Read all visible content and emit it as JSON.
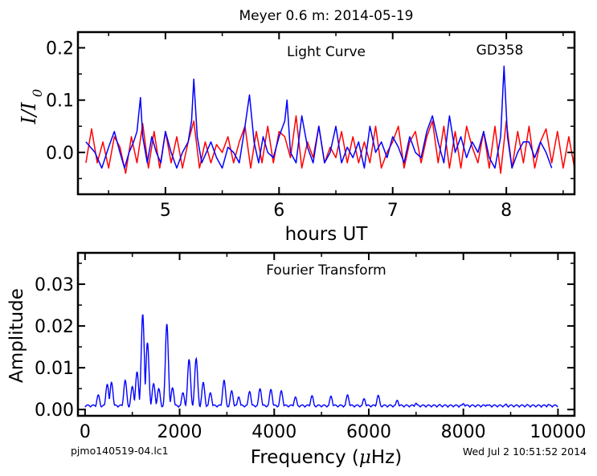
{
  "figure": {
    "suptitle": "Meyer 0.6 m:  2014-05-19",
    "file_label": "pjmo140519-04.lc1",
    "timestamp": "Wed Jul  2 10:51:52 2014"
  },
  "colors": {
    "data": "#0000ff",
    "model": "#ff0000",
    "axes": "#000000",
    "background": "#ffffff"
  },
  "chart_data": [
    {
      "type": "line",
      "title": "Light Curve",
      "annotation": "GD358",
      "xlabel": "hours UT",
      "ylabel": "I/I0",
      "ylabel_main": "I/I",
      "ylabel_sub": "0",
      "xlim": [
        4.23,
        8.6
      ],
      "ylim": [
        -0.08,
        0.23
      ],
      "xticks": [
        5,
        6,
        7,
        8
      ],
      "xtick_labels": [
        "5",
        "6",
        "7",
        "8"
      ],
      "yticks": [
        0.0,
        0.1,
        0.2
      ],
      "ytick_labels": [
        "0.0",
        "0.1",
        "0.2"
      ],
      "grid": false,
      "series": [
        {
          "role": "data",
          "color": "#0000ff",
          "x": [
            4.3,
            4.38,
            4.44,
            4.5,
            4.55,
            4.6,
            4.64,
            4.68,
            4.72,
            4.75,
            4.78,
            4.8,
            4.84,
            4.88,
            4.92,
            4.96,
            5.0,
            5.05,
            5.1,
            5.15,
            5.2,
            5.23,
            5.25,
            5.28,
            5.32,
            5.36,
            5.4,
            5.45,
            5.5,
            5.55,
            5.6,
            5.65,
            5.7,
            5.74,
            5.78,
            5.82,
            5.86,
            5.9,
            5.95,
            6.0,
            6.05,
            6.07,
            6.1,
            6.15,
            6.2,
            6.25,
            6.3,
            6.35,
            6.4,
            6.45,
            6.5,
            6.55,
            6.6,
            6.65,
            6.7,
            6.75,
            6.8,
            6.85,
            6.9,
            6.95,
            7.0,
            7.05,
            7.1,
            7.15,
            7.2,
            7.25,
            7.3,
            7.35,
            7.4,
            7.45,
            7.5,
            7.55,
            7.6,
            7.65,
            7.7,
            7.75,
            7.8,
            7.85,
            7.9,
            7.95,
            7.98,
            8.01,
            8.05,
            8.1,
            8.15,
            8.2,
            8.25,
            8.3,
            8.35,
            8.4
          ],
          "y": [
            0.02,
            0.0,
            -0.03,
            0.01,
            0.04,
            0.0,
            -0.03,
            0.0,
            0.02,
            0.04,
            0.105,
            0.03,
            -0.02,
            0.03,
            0.0,
            -0.02,
            0.04,
            0.0,
            -0.03,
            0.0,
            0.02,
            0.06,
            0.14,
            0.03,
            -0.02,
            0.0,
            0.02,
            -0.01,
            -0.03,
            0.01,
            0.0,
            -0.02,
            0.05,
            0.11,
            0.02,
            -0.02,
            0.03,
            0.0,
            -0.01,
            0.03,
            0.06,
            0.1,
            0.0,
            -0.02,
            0.07,
            0.01,
            -0.02,
            0.05,
            -0.02,
            0.0,
            0.05,
            -0.02,
            0.01,
            -0.01,
            0.02,
            -0.03,
            0.05,
            0.0,
            0.02,
            -0.01,
            0.03,
            0.01,
            -0.02,
            0.03,
            0.0,
            -0.01,
            0.04,
            0.07,
            0.02,
            -0.02,
            0.07,
            0.0,
            0.03,
            -0.01,
            0.02,
            0.0,
            0.04,
            -0.01,
            -0.03,
            0.03,
            0.165,
            0.03,
            -0.03,
            0.0,
            0.02,
            0.02,
            -0.01,
            0.02,
            0.0,
            -0.03
          ]
        },
        {
          "role": "model",
          "color": "#ff0000",
          "x": [
            4.3,
            4.35,
            4.4,
            4.45,
            4.5,
            4.55,
            4.6,
            4.65,
            4.7,
            4.75,
            4.8,
            4.85,
            4.9,
            4.95,
            5.0,
            5.05,
            5.1,
            5.15,
            5.2,
            5.25,
            5.3,
            5.35,
            5.4,
            5.45,
            5.5,
            5.55,
            5.6,
            5.65,
            5.7,
            5.75,
            5.8,
            5.85,
            5.9,
            5.95,
            6.0,
            6.05,
            6.1,
            6.15,
            6.2,
            6.25,
            6.3,
            6.35,
            6.4,
            6.45,
            6.5,
            6.55,
            6.6,
            6.65,
            6.7,
            6.75,
            6.8,
            6.85,
            6.9,
            6.95,
            7.0,
            7.05,
            7.1,
            7.15,
            7.2,
            7.25,
            7.3,
            7.35,
            7.4,
            7.45,
            7.5,
            7.55,
            7.6,
            7.65,
            7.7,
            7.75,
            7.8,
            7.85,
            7.9,
            7.95,
            8.0,
            8.05,
            8.1,
            8.15,
            8.2,
            8.25,
            8.3,
            8.35,
            8.4,
            8.45,
            8.5,
            8.55,
            8.6
          ],
          "y": [
            -0.02,
            0.045,
            -0.02,
            0.02,
            -0.03,
            0.03,
            0.01,
            -0.04,
            0.03,
            -0.02,
            0.055,
            -0.03,
            0.04,
            -0.03,
            0.04,
            -0.02,
            0.03,
            -0.03,
            0.02,
            0.06,
            -0.03,
            0.02,
            -0.02,
            0.015,
            0.0,
            0.03,
            -0.02,
            0.02,
            0.05,
            -0.03,
            0.04,
            -0.02,
            0.05,
            -0.02,
            0.04,
            0.03,
            -0.01,
            0.07,
            -0.03,
            0.02,
            -0.01,
            0.05,
            -0.02,
            0.01,
            -0.01,
            0.04,
            -0.02,
            0.03,
            -0.02,
            0.02,
            -0.02,
            0.05,
            -0.03,
            0.0,
            0.02,
            0.05,
            -0.03,
            0.02,
            0.04,
            -0.02,
            0.03,
            0.06,
            -0.02,
            0.05,
            -0.03,
            0.04,
            -0.03,
            0.05,
            0.01,
            -0.02,
            0.04,
            -0.03,
            0.05,
            -0.04,
            0.06,
            -0.03,
            0.04,
            -0.02,
            0.05,
            -0.03,
            0.02,
            0.045,
            -0.02,
            0.04,
            -0.03,
            0.03,
            -0.03
          ]
        }
      ]
    },
    {
      "type": "line",
      "title": "Fourier Transform",
      "xlabel": "Frequency (μHz)",
      "xlabel_prefix": "Frequency (",
      "xlabel_mu": "μ",
      "xlabel_suffix": "Hz)",
      "ylabel": "Amplitude",
      "xlim": [
        -150,
        10350
      ],
      "ylim": [
        -0.0015,
        0.0375
      ],
      "xticks": [
        0,
        2000,
        4000,
        6000,
        8000,
        10000
      ],
      "xtick_labels": [
        "0",
        "2000",
        "4000",
        "6000",
        "8000",
        "10000"
      ],
      "yticks": [
        0.0,
        0.01,
        0.02,
        0.03
      ],
      "ytick_labels": [
        "0.00",
        "0.01",
        "0.02",
        "0.03"
      ],
      "grid": false,
      "peaks": [
        {
          "f": 280,
          "a": 0.0035
        },
        {
          "f": 470,
          "a": 0.006
        },
        {
          "f": 560,
          "a": 0.0065
        },
        {
          "f": 850,
          "a": 0.007
        },
        {
          "f": 1000,
          "a": 0.0055
        },
        {
          "f": 1100,
          "a": 0.009
        },
        {
          "f": 1220,
          "a": 0.0228
        },
        {
          "f": 1320,
          "a": 0.016
        },
        {
          "f": 1450,
          "a": 0.0062
        },
        {
          "f": 1560,
          "a": 0.005
        },
        {
          "f": 1730,
          "a": 0.0205
        },
        {
          "f": 1850,
          "a": 0.0052
        },
        {
          "f": 2070,
          "a": 0.004
        },
        {
          "f": 2200,
          "a": 0.012
        },
        {
          "f": 2350,
          "a": 0.0122
        },
        {
          "f": 2500,
          "a": 0.0065
        },
        {
          "f": 2650,
          "a": 0.004
        },
        {
          "f": 2940,
          "a": 0.007
        },
        {
          "f": 3100,
          "a": 0.0045
        },
        {
          "f": 3250,
          "a": 0.003
        },
        {
          "f": 3480,
          "a": 0.0043
        },
        {
          "f": 3700,
          "a": 0.005
        },
        {
          "f": 3930,
          "a": 0.0048
        },
        {
          "f": 4150,
          "a": 0.0045
        },
        {
          "f": 4450,
          "a": 0.003
        },
        {
          "f": 4800,
          "a": 0.0033
        },
        {
          "f": 5200,
          "a": 0.0032
        },
        {
          "f": 5550,
          "a": 0.0035
        },
        {
          "f": 5900,
          "a": 0.0026
        },
        {
          "f": 6200,
          "a": 0.0034
        },
        {
          "f": 6600,
          "a": 0.0022
        },
        {
          "f": 7000,
          "a": 0.0015
        },
        {
          "f": 7500,
          "a": 0.0012
        },
        {
          "f": 8000,
          "a": 0.0014
        },
        {
          "f": 8500,
          "a": 0.0011
        },
        {
          "f": 8900,
          "a": 0.0013
        },
        {
          "f": 9350,
          "a": 0.0012
        },
        {
          "f": 9800,
          "a": 0.0012
        }
      ],
      "series": [
        {
          "role": "data",
          "color": "#0000ff",
          "x_range": [
            0,
            10000
          ]
        }
      ]
    }
  ]
}
